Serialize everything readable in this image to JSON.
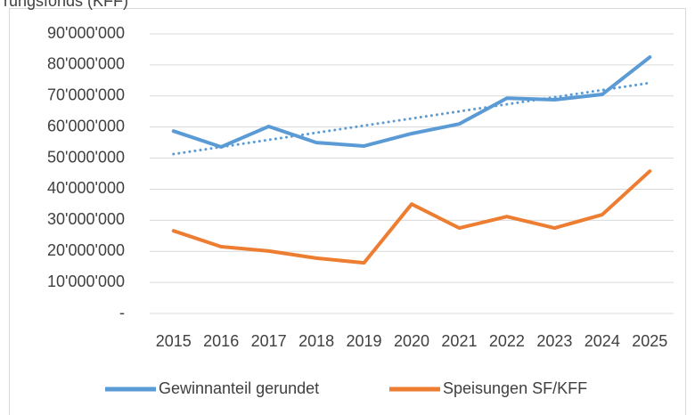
{
  "chart_data": {
    "type": "line",
    "title": "rungsfonds (KFF)",
    "categories": [
      "2015",
      "2016",
      "2017",
      "2018",
      "2019",
      "2020",
      "2021",
      "2022",
      "2023",
      "2024",
      "2025"
    ],
    "series": [
      {
        "name": "Gewinnanteil gerundet",
        "color": "#5b9bd5",
        "values": [
          58700000,
          53600000,
          60200000,
          55000000,
          53900000,
          57900000,
          61000000,
          69300000,
          68800000,
          70500000,
          82500000
        ]
      },
      {
        "name": "Speisungen SF/KFF",
        "color": "#ed7d31",
        "values": [
          26600000,
          21500000,
          20100000,
          17800000,
          16300000,
          35200000,
          27500000,
          31200000,
          27500000,
          31800000,
          45800000
        ]
      }
    ],
    "trendline": {
      "color": "#5b9bd5",
      "style": "dotted",
      "values": [
        51300000,
        74200000
      ]
    },
    "ylim": [
      0,
      90000000
    ],
    "yticks": [
      {
        "value": 0,
        "label": "-"
      },
      {
        "value": 10000000,
        "label": "10'000'000"
      },
      {
        "value": 20000000,
        "label": "20'000'000"
      },
      {
        "value": 30000000,
        "label": "30'000'000"
      },
      {
        "value": 40000000,
        "label": "40'000'000"
      },
      {
        "value": 50000000,
        "label": "50'000'000"
      },
      {
        "value": 60000000,
        "label": "60'000'000"
      },
      {
        "value": 70000000,
        "label": "70'000'000"
      },
      {
        "value": 80000000,
        "label": "80'000'000"
      },
      {
        "value": 90000000,
        "label": "90'000'000"
      }
    ],
    "grid": true,
    "legend": "bottom"
  }
}
